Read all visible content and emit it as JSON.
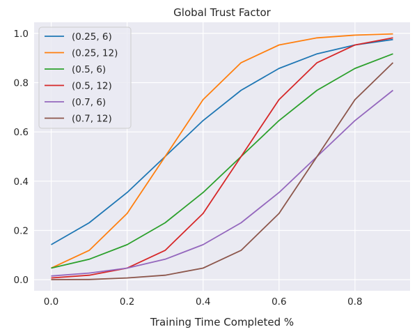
{
  "chart_data": {
    "type": "line",
    "title": "Global Trust Factor",
    "xlabel": "Training Time Completed %",
    "ylabel": "",
    "xlim": [
      -0.045,
      0.945
    ],
    "ylim": [
      -0.045,
      1.045
    ],
    "x_ticks": [
      0.0,
      0.2,
      0.4,
      0.6,
      0.8
    ],
    "x_tick_labels": [
      "0.0",
      "0.2",
      "0.4",
      "0.6",
      "0.8"
    ],
    "y_ticks": [
      0.0,
      0.2,
      0.4,
      0.6,
      0.8,
      1.0
    ],
    "y_tick_labels": [
      "0.0",
      "0.2",
      "0.4",
      "0.6",
      "0.8",
      "1.0"
    ],
    "grid": true,
    "legend_position": "top-left",
    "x": [
      0.0,
      0.1,
      0.2,
      0.3,
      0.4,
      0.5,
      0.6,
      0.7,
      0.8,
      0.9
    ],
    "series": [
      {
        "name": "(0.25, 6)",
        "color": "#1f77b4",
        "values": [
          0.142,
          0.231,
          0.354,
          0.5,
          0.646,
          0.769,
          0.858,
          0.917,
          0.953,
          0.975
        ]
      },
      {
        "name": "(0.25, 12)",
        "color": "#ff7f0e",
        "values": [
          0.047,
          0.119,
          0.269,
          0.5,
          0.731,
          0.881,
          0.953,
          0.982,
          0.993,
          0.998
        ]
      },
      {
        "name": "(0.5, 6)",
        "color": "#2ca02c",
        "values": [
          0.047,
          0.083,
          0.142,
          0.231,
          0.354,
          0.5,
          0.646,
          0.769,
          0.858,
          0.917
        ]
      },
      {
        "name": "(0.5, 12)",
        "color": "#d62728",
        "values": [
          0.007,
          0.018,
          0.047,
          0.119,
          0.269,
          0.5,
          0.731,
          0.881,
          0.953,
          0.982
        ]
      },
      {
        "name": "(0.7, 6)",
        "color": "#9467bd",
        "values": [
          0.015,
          0.027,
          0.047,
          0.083,
          0.142,
          0.231,
          0.354,
          0.5,
          0.646,
          0.769
        ]
      },
      {
        "name": "(0.7, 12)",
        "color": "#8c564b",
        "values": [
          0.0002,
          0.001,
          0.007,
          0.018,
          0.047,
          0.119,
          0.269,
          0.5,
          0.731,
          0.881
        ]
      }
    ]
  }
}
